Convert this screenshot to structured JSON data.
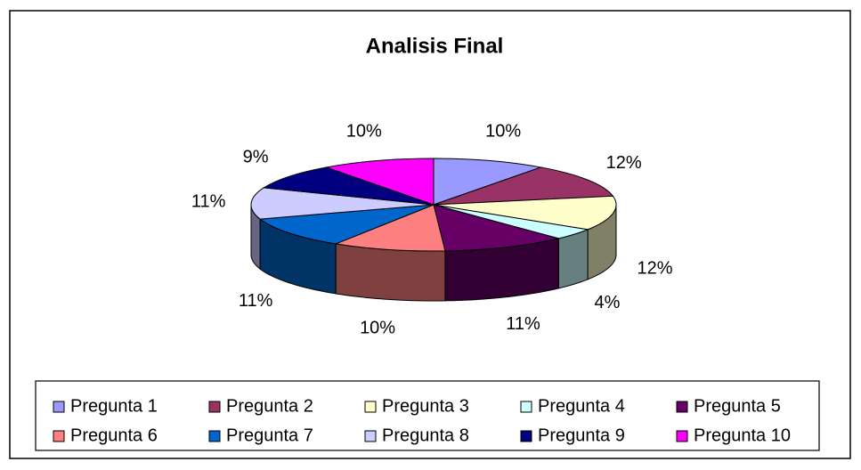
{
  "chart_data": {
    "type": "pie",
    "title": "Analisis Final",
    "categories": [
      "Pregunta 1",
      "Pregunta 2",
      "Pregunta 3",
      "Pregunta 4",
      "Pregunta 5",
      "Pregunta 6",
      "Pregunta 7",
      "Pregunta 8",
      "Pregunta 9",
      "Pregunta 10"
    ],
    "values": [
      10,
      12,
      12,
      4,
      11,
      10,
      11,
      11,
      9,
      10
    ],
    "value_labels": [
      "10%",
      "12%",
      "12%",
      "4%",
      "11%",
      "10%",
      "11%",
      "11%",
      "9%",
      "10%"
    ],
    "colors": [
      "#9999FF",
      "#993366",
      "#FFFFCC",
      "#CCFFFF",
      "#660066",
      "#FF8080",
      "#0066CC",
      "#CCCCFF",
      "#000080",
      "#FF00FF"
    ],
    "legend": "bottom"
  }
}
